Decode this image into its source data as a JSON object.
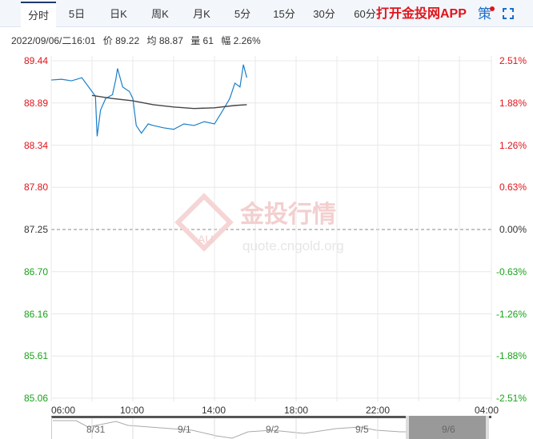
{
  "tabs": [
    {
      "label": "分时",
      "active": true
    },
    {
      "label": "5日"
    },
    {
      "label": "日K"
    },
    {
      "label": "周K"
    },
    {
      "label": "月K"
    },
    {
      "label": "5分"
    },
    {
      "label": "15分"
    },
    {
      "label": "30分"
    },
    {
      "label": "60分"
    }
  ],
  "app_label": "打开金投网APP",
  "strategy_label": "策",
  "info": {
    "datetime": "2022/09/06/二16:01",
    "price": "价 89.22",
    "avg": "均 88.87",
    "volume": "量 61",
    "change": "幅 2.26%"
  },
  "watermark": {
    "brand": "金投行情",
    "url": "quote.cngold.org",
    "logo": "AU"
  },
  "colors": {
    "up": "#e0141a",
    "down": "#1aa31a",
    "price_line": "#1b7fc9",
    "avg_line": "#444444",
    "accent": "#1e3a6e"
  },
  "chart_data": {
    "type": "line",
    "ylim": [
      85.06,
      89.44
    ],
    "y_ticks": [
      "89.44",
      "88.89",
      "88.34",
      "87.80",
      "87.25",
      "86.70",
      "86.16",
      "85.61",
      "85.06"
    ],
    "pct_ticks": [
      "2.51%",
      "1.88%",
      "1.26%",
      "0.63%",
      "0.00%",
      "-0.63%",
      "-1.26%",
      "-1.88%",
      "-2.51%"
    ],
    "prev_close": 87.25,
    "x_ticks": [
      "06:00",
      "10:00",
      "14:00",
      "18:00",
      "22:00",
      "04:00"
    ],
    "series": [
      {
        "key": "price",
        "x": [
          "06:00",
          "06:30",
          "07:00",
          "07:30",
          "07:50",
          "08:00",
          "08:10",
          "08:15",
          "08:25",
          "08:40",
          "09:00",
          "09:10",
          "09:15",
          "09:30",
          "09:50",
          "10:00",
          "10:10",
          "10:25",
          "10:45",
          "11:00",
          "11:30",
          "12:00",
          "12:30",
          "13:00",
          "13:30",
          "14:00",
          "14:25",
          "14:45",
          "15:00",
          "15:15",
          "15:25",
          "15:35"
        ],
        "y": [
          89.19,
          89.2,
          89.18,
          89.22,
          89.1,
          89.04,
          88.98,
          88.46,
          88.8,
          88.95,
          89.0,
          89.2,
          89.34,
          89.1,
          89.04,
          88.95,
          88.6,
          88.5,
          88.62,
          88.6,
          88.57,
          88.55,
          88.62,
          88.6,
          88.65,
          88.62,
          88.8,
          88.95,
          89.15,
          89.1,
          89.39,
          89.22
        ]
      },
      {
        "key": "avg",
        "x": [
          "08:00",
          "09:00",
          "10:00",
          "11:00",
          "12:00",
          "13:00",
          "14:00",
          "15:00",
          "15:35"
        ],
        "y": [
          88.99,
          88.95,
          88.92,
          88.87,
          88.84,
          88.82,
          88.83,
          88.86,
          88.87
        ]
      }
    ]
  },
  "navigator": {
    "dates": [
      "8/31",
      "9/1",
      "9/2",
      "9/5",
      "9/6"
    ]
  }
}
